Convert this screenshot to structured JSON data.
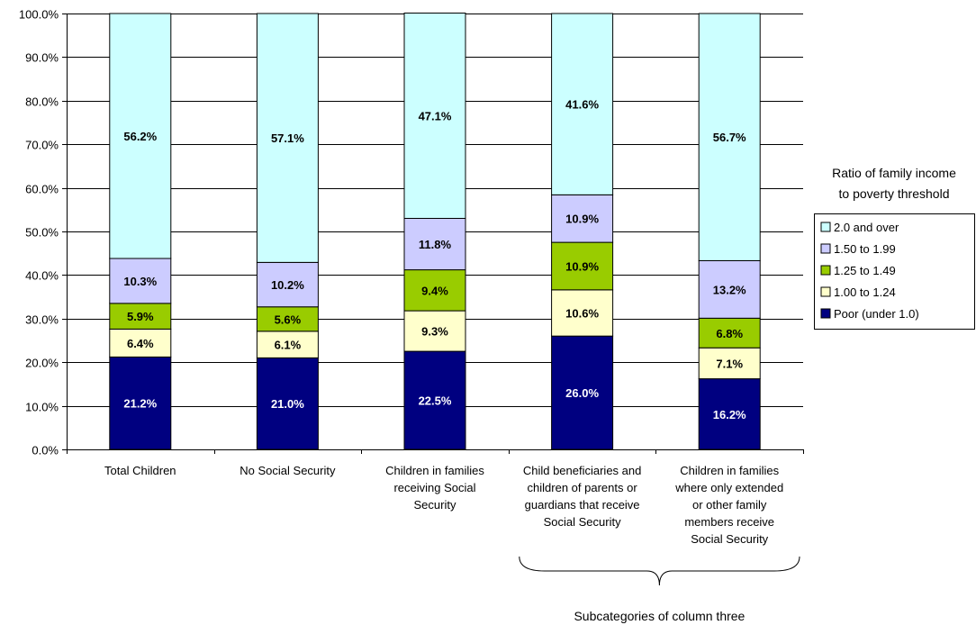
{
  "chart_data": {
    "type": "bar",
    "stacked": true,
    "categories": [
      "Total Children",
      "No Social Security",
      "Children in families receiving Social Security",
      "Child beneficiaries and children of parents or guardians that receive Social Security",
      "Children in families where only extended or other family members receive Social Security"
    ],
    "category_lines": [
      [
        "Total Children"
      ],
      [
        "No Social Security"
      ],
      [
        "Children in families",
        "receiving Social",
        "Security"
      ],
      [
        "Child beneficiaries and",
        "children of parents or",
        "guardians that receive",
        "Social Security"
      ],
      [
        "Children in families",
        "where only extended",
        "or other family",
        "members receive",
        "Social Security"
      ]
    ],
    "series": [
      {
        "name": "Poor (under 1.0)",
        "color": "#000080",
        "label_color": "#ffffff",
        "values": [
          21.2,
          21.0,
          22.5,
          26.0,
          16.2
        ],
        "labels": [
          "21.2%",
          "21.0%",
          "22.5%",
          "26.0%",
          "16.2%"
        ]
      },
      {
        "name": "1.00 to 1.24",
        "color": "#ffffcc",
        "label_color": "#000000",
        "values": [
          6.4,
          6.1,
          9.3,
          10.6,
          7.1
        ],
        "labels": [
          "6.4%",
          "6.1%",
          "9.3%",
          "10.6%",
          "7.1%"
        ]
      },
      {
        "name": "1.25 to 1.49",
        "color": "#99cc00",
        "label_color": "#000000",
        "values": [
          5.9,
          5.6,
          9.4,
          10.9,
          6.8
        ],
        "labels": [
          "5.9%",
          "5.6%",
          "9.4%",
          "10.9%",
          "6.8%"
        ]
      },
      {
        "name": "1.50 to 1.99",
        "color": "#ccccff",
        "label_color": "#000000",
        "values": [
          10.3,
          10.2,
          11.8,
          10.9,
          13.2
        ],
        "labels": [
          "10.3%",
          "10.2%",
          "11.8%",
          "10.9%",
          "13.2%"
        ]
      },
      {
        "name": "2.0 and over",
        "color": "#ccffff",
        "label_color": "#000000",
        "values": [
          56.2,
          57.1,
          47.1,
          41.6,
          56.7
        ],
        "labels": [
          "56.2%",
          "57.1%",
          "47.1%",
          "41.6%",
          "56.7%"
        ]
      }
    ],
    "ylim": [
      0,
      100
    ],
    "yticks": [
      0,
      10,
      20,
      30,
      40,
      50,
      60,
      70,
      80,
      90,
      100
    ],
    "ytick_labels": [
      "0.0%",
      "10.0%",
      "20.0%",
      "30.0%",
      "40.0%",
      "50.0%",
      "60.0%",
      "70.0%",
      "80.0%",
      "90.0%",
      "100.0%"
    ],
    "grid": true,
    "legend": {
      "title_lines": [
        "Ratio of family income",
        "to poverty threshold"
      ],
      "placement": "right",
      "order": [
        "2.0 and over",
        "1.50 to 1.99",
        "1.25 to 1.49",
        "1.00 to 1.24",
        "Poor (under 1.0)"
      ]
    },
    "annotation": {
      "text": "Subcategories of column three",
      "brace_over_categories": [
        3,
        4
      ]
    }
  }
}
